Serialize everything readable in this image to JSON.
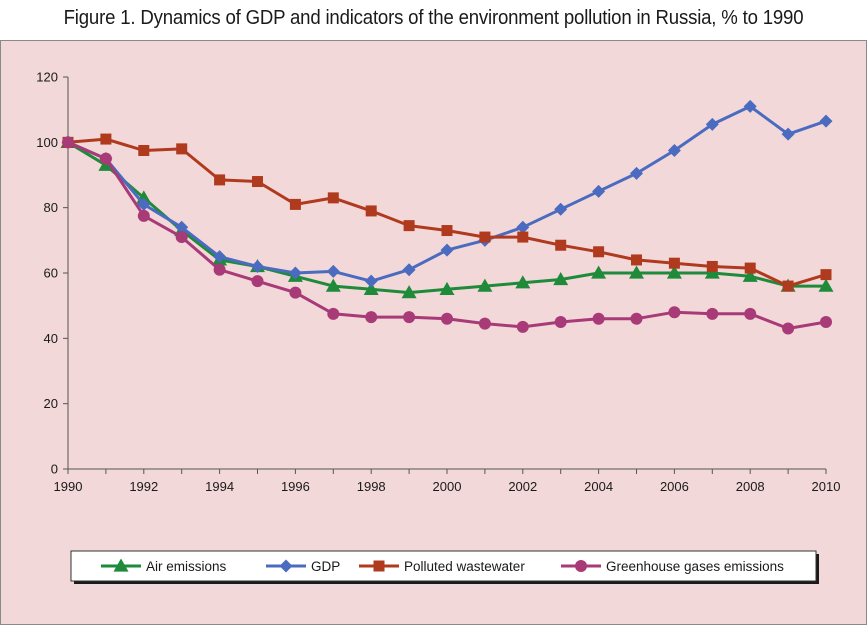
{
  "chart_data": {
    "type": "line",
    "title": "Figure 1. Dynamics of GDP and indicators of the environment pollution in Russia, % to 1990",
    "xlabel": "",
    "ylabel": "",
    "x": [
      1990,
      1991,
      1992,
      1993,
      1994,
      1995,
      1996,
      1997,
      1998,
      1999,
      2000,
      2001,
      2002,
      2003,
      2004,
      2005,
      2006,
      2007,
      2008,
      2009,
      2010
    ],
    "x_tick_labels": [
      "1990",
      "1992",
      "1994",
      "1996",
      "1998",
      "2000",
      "2002",
      "2004",
      "2006",
      "2008",
      "2010"
    ],
    "y_tick_labels": [
      "0",
      "20",
      "40",
      "60",
      "80",
      "100",
      "120"
    ],
    "xlim": [
      1990,
      2010
    ],
    "ylim": [
      0,
      120
    ],
    "y_step": 20,
    "grid": false,
    "legend_position": "bottom",
    "series": [
      {
        "name": "Air emissions",
        "color": "#1e8a3a",
        "marker": "triangle",
        "values": [
          100,
          93,
          83,
          73,
          64,
          62,
          59,
          56,
          55,
          54,
          55,
          56,
          57,
          58,
          60,
          60,
          60,
          60,
          59,
          56,
          56
        ]
      },
      {
        "name": "GDP",
        "color": "#4a6bbf",
        "marker": "diamond",
        "values": [
          100,
          95,
          81,
          74,
          65,
          62,
          60,
          60.5,
          57.5,
          61,
          67,
          70,
          74,
          79.5,
          85,
          90.5,
          97.5,
          105.5,
          111,
          102.5,
          106.5
        ]
      },
      {
        "name": "Polluted wastewater",
        "color": "#b03a1e",
        "marker": "square",
        "values": [
          100,
          101,
          97.5,
          98,
          88.5,
          88,
          81,
          83,
          79,
          74.5,
          73,
          71,
          71,
          68.5,
          66.5,
          64,
          63,
          62,
          61.5,
          56,
          59.5
        ]
      },
      {
        "name": "Greenhouse gases emissions",
        "color": "#a83a78",
        "marker": "circle",
        "values": [
          100,
          95,
          77.5,
          71,
          61,
          57.5,
          54,
          47.5,
          46.5,
          46.5,
          46,
          44.5,
          43.5,
          45,
          46,
          46,
          48,
          47.5,
          47.5,
          43,
          45
        ]
      }
    ]
  }
}
